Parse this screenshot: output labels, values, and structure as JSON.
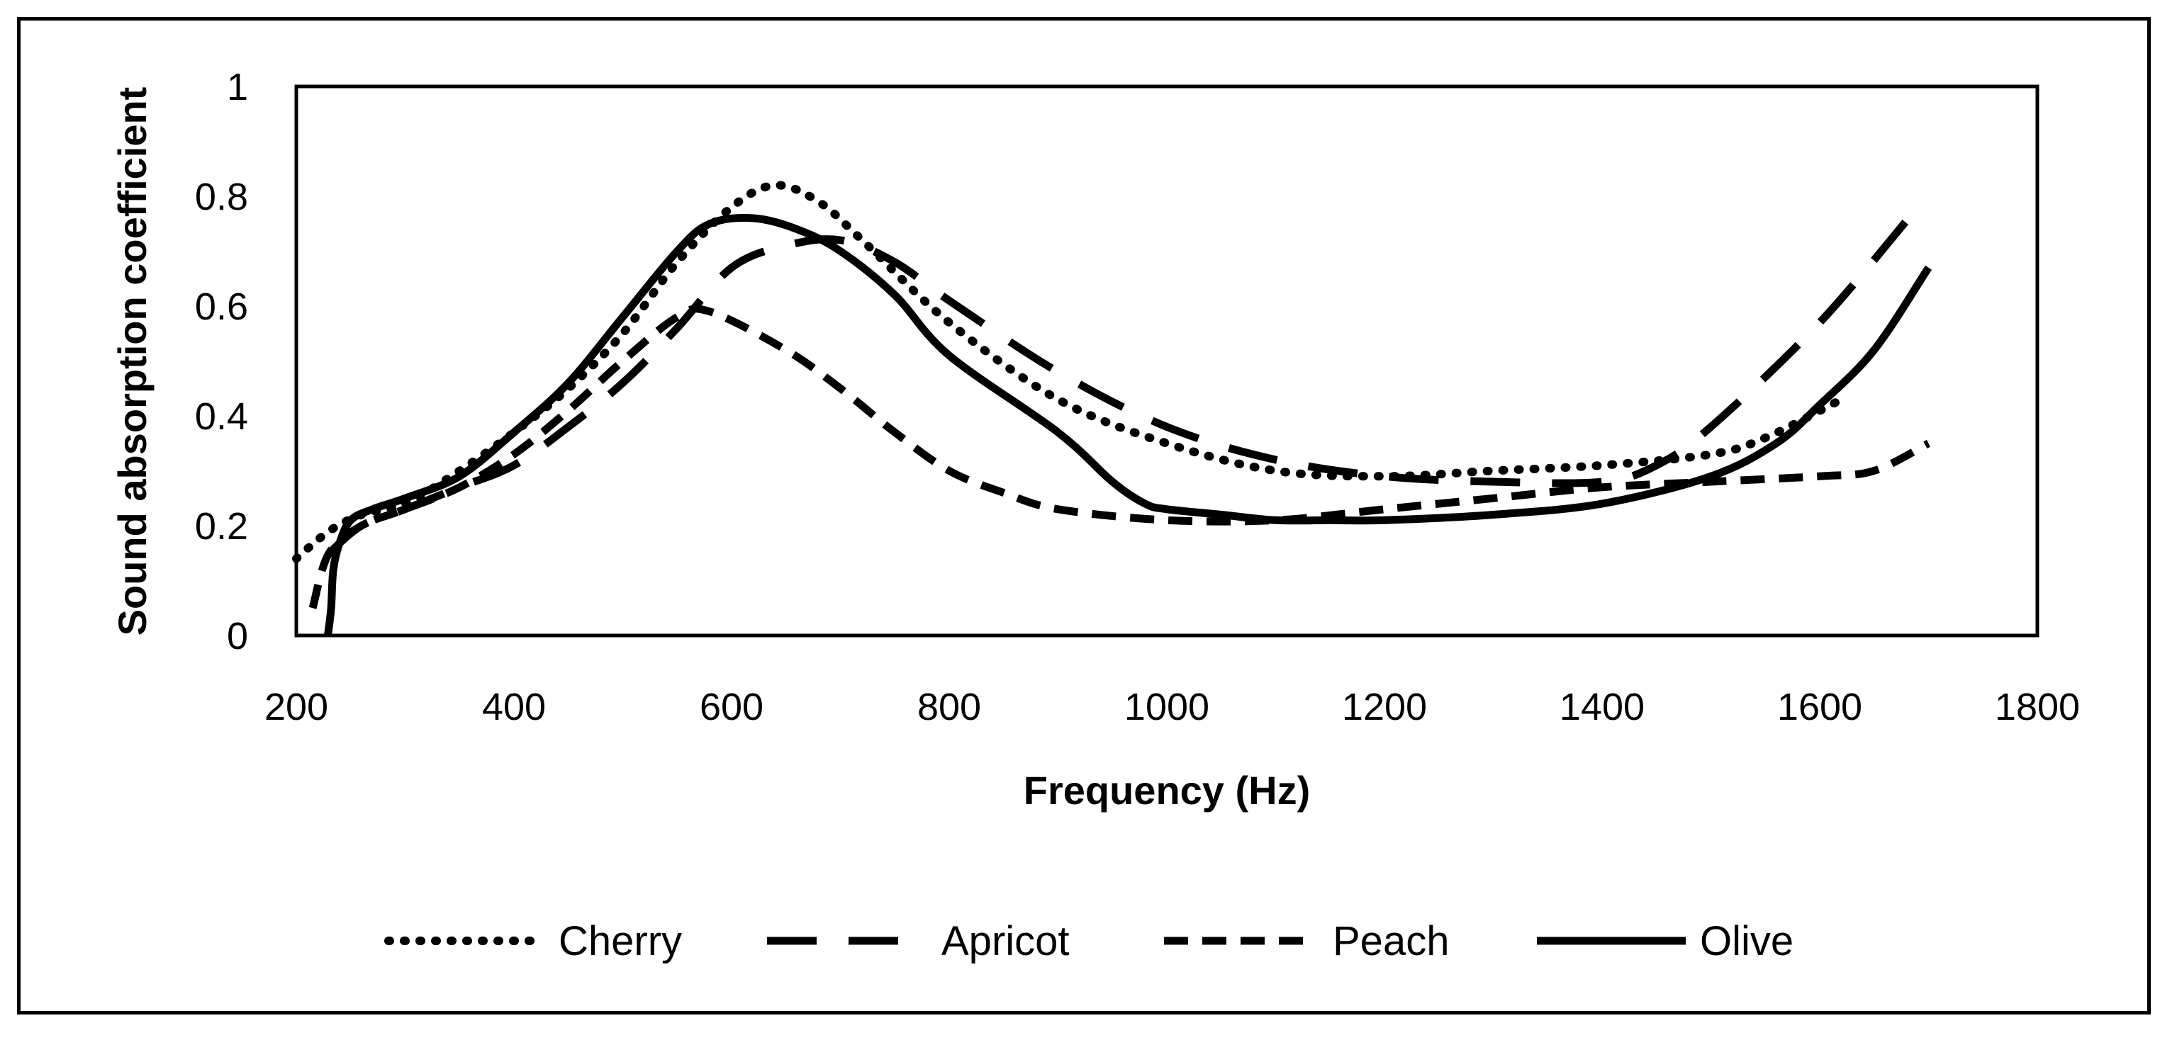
{
  "chart_data": {
    "type": "line",
    "title": "",
    "xlabel": "Frequency (Hz)",
    "ylabel": "Sound absorption coefficient",
    "xlim": [
      200,
      1800
    ],
    "ylim": [
      0,
      1
    ],
    "xticks": [
      200,
      400,
      600,
      800,
      1000,
      1200,
      1400,
      1600,
      1800
    ],
    "yticks": [
      0,
      0.2,
      0.4,
      0.6,
      0.8,
      1
    ],
    "ytick_labels": [
      "0",
      "0.2",
      "0.4",
      "0.6",
      "0.8",
      "1"
    ],
    "grid": false,
    "legend_position": "bottom",
    "series": [
      {
        "name": "Cherry",
        "style": "dotted",
        "points": [
          [
            200,
            0.14
          ],
          [
            230,
            0.19
          ],
          [
            260,
            0.22
          ],
          [
            300,
            0.24
          ],
          [
            350,
            0.3
          ],
          [
            400,
            0.37
          ],
          [
            450,
            0.45
          ],
          [
            500,
            0.55
          ],
          [
            550,
            0.68
          ],
          [
            600,
            0.78
          ],
          [
            640,
            0.82
          ],
          [
            680,
            0.79
          ],
          [
            720,
            0.72
          ],
          [
            800,
            0.57
          ],
          [
            900,
            0.43
          ],
          [
            1000,
            0.35
          ],
          [
            1100,
            0.3
          ],
          [
            1200,
            0.29
          ],
          [
            1300,
            0.3
          ],
          [
            1400,
            0.31
          ],
          [
            1500,
            0.33
          ],
          [
            1550,
            0.36
          ],
          [
            1620,
            0.43
          ]
        ]
      },
      {
        "name": "Apricot",
        "style": "long-dash",
        "points": [
          [
            230,
            0.15
          ],
          [
            260,
            0.2
          ],
          [
            300,
            0.23
          ],
          [
            350,
            0.27
          ],
          [
            400,
            0.31
          ],
          [
            450,
            0.38
          ],
          [
            500,
            0.46
          ],
          [
            550,
            0.56
          ],
          [
            600,
            0.67
          ],
          [
            650,
            0.71
          ],
          [
            700,
            0.72
          ],
          [
            750,
            0.68
          ],
          [
            800,
            0.61
          ],
          [
            900,
            0.48
          ],
          [
            1000,
            0.38
          ],
          [
            1100,
            0.32
          ],
          [
            1200,
            0.29
          ],
          [
            1300,
            0.28
          ],
          [
            1400,
            0.28
          ],
          [
            1450,
            0.31
          ],
          [
            1500,
            0.38
          ],
          [
            1600,
            0.57
          ],
          [
            1690,
            0.78
          ]
        ]
      },
      {
        "name": "Peach",
        "style": "short-dash",
        "points": [
          [
            215,
            0.05
          ],
          [
            230,
            0.15
          ],
          [
            260,
            0.2
          ],
          [
            300,
            0.23
          ],
          [
            350,
            0.27
          ],
          [
            400,
            0.33
          ],
          [
            450,
            0.41
          ],
          [
            500,
            0.5
          ],
          [
            550,
            0.58
          ],
          [
            580,
            0.59
          ],
          [
            650,
            0.52
          ],
          [
            700,
            0.45
          ],
          [
            750,
            0.37
          ],
          [
            800,
            0.3
          ],
          [
            850,
            0.26
          ],
          [
            900,
            0.23
          ],
          [
            1000,
            0.21
          ],
          [
            1100,
            0.21
          ],
          [
            1200,
            0.23
          ],
          [
            1300,
            0.25
          ],
          [
            1400,
            0.27
          ],
          [
            1500,
            0.28
          ],
          [
            1600,
            0.29
          ],
          [
            1650,
            0.3
          ],
          [
            1700,
            0.35
          ]
        ]
      },
      {
        "name": "Olive",
        "style": "solid",
        "points": [
          [
            229,
            0.0
          ],
          [
            232,
            0.05
          ],
          [
            234,
            0.12
          ],
          [
            240,
            0.17
          ],
          [
            250,
            0.21
          ],
          [
            270,
            0.23
          ],
          [
            300,
            0.25
          ],
          [
            350,
            0.29
          ],
          [
            400,
            0.37
          ],
          [
            450,
            0.46
          ],
          [
            500,
            0.58
          ],
          [
            550,
            0.7
          ],
          [
            580,
            0.75
          ],
          [
            620,
            0.76
          ],
          [
            660,
            0.74
          ],
          [
            700,
            0.7
          ],
          [
            750,
            0.62
          ],
          [
            800,
            0.51
          ],
          [
            900,
            0.37
          ],
          [
            950,
            0.28
          ],
          [
            980,
            0.24
          ],
          [
            1000,
            0.23
          ],
          [
            1050,
            0.22
          ],
          [
            1100,
            0.21
          ],
          [
            1150,
            0.21
          ],
          [
            1200,
            0.21
          ],
          [
            1300,
            0.22
          ],
          [
            1400,
            0.24
          ],
          [
            1500,
            0.29
          ],
          [
            1560,
            0.35
          ],
          [
            1600,
            0.42
          ],
          [
            1650,
            0.52
          ],
          [
            1700,
            0.67
          ]
        ]
      }
    ]
  }
}
